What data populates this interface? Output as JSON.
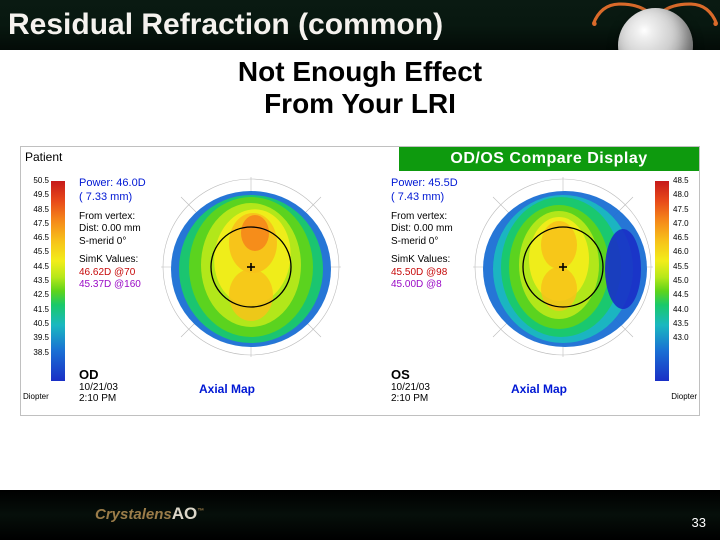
{
  "title": "Residual Refraction (common)",
  "subtitle_line1": "Not Enough Effect",
  "subtitle_line2": "From Your LRI",
  "page_number": "33",
  "brand": {
    "name": "Crystalens",
    "suffix": "AO",
    "tm": "™"
  },
  "haptic_color": "#d96a2a",
  "topo": {
    "patient_label": "Patient",
    "compare_title": "OD/OS Compare Display",
    "diopter_label": "Diopter",
    "scale_left_ticks": [
      "50.5",
      "49.5",
      "48.5",
      "47.5",
      "46.5",
      "45.5",
      "44.5",
      "43.5",
      "42.5",
      "41.5",
      "40.5",
      "39.5",
      "38.5"
    ],
    "scale_right_ticks": [
      "48.5",
      "48.0",
      "47.5",
      "47.0",
      "46.5",
      "46.0",
      "45.5",
      "45.0",
      "44.5",
      "44.0",
      "43.5",
      "43.0"
    ],
    "gradient_colors": [
      "#c61a1a",
      "#e84a1a",
      "#f58a1a",
      "#f7c21a",
      "#f2ed1a",
      "#b7e81a",
      "#5fd41a",
      "#1ac96a",
      "#1ab8c0",
      "#1a6fd4",
      "#1a2fc6"
    ],
    "od": {
      "label": "OD",
      "power_line1": "Power: 46.0D",
      "power_line2": "( 7.33 mm)",
      "vertex_header": "From vertex:",
      "vertex_dist": "Dist: 0.00 mm",
      "vertex_smerid": "S-merid    0°",
      "simk_header": "SimK Values:",
      "simk_line1": "46.62D @70",
      "simk_line2": "45.37D @160",
      "date": "10/21/03",
      "time": "2:10 PM",
      "axial": "Axial Map"
    },
    "os": {
      "label": "OS",
      "power_line1": "Power: 45.5D",
      "power_line2": "( 7.43 mm)",
      "vertex_header": "From vertex:",
      "vertex_dist": "Dist: 0.00 mm",
      "vertex_smerid": "S-merid    0°",
      "simk_header": "SimK Values:",
      "simk_line1": "45.50D @98",
      "simk_line2": "45.00D @8",
      "date": "10/21/03",
      "time": "2:10 PM",
      "axial": "Axial Map"
    }
  }
}
